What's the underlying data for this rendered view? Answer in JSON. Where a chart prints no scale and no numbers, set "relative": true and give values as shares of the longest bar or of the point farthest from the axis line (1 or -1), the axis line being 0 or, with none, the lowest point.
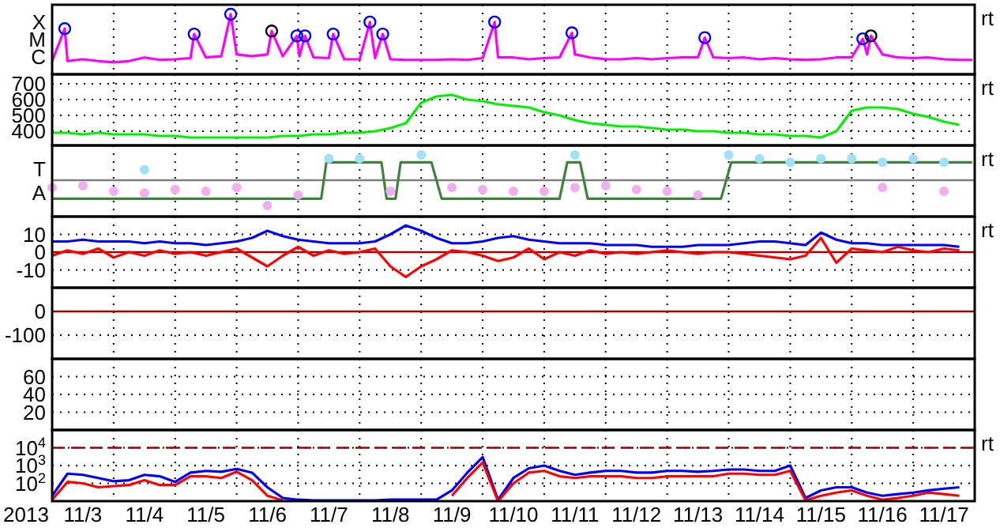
{
  "chart_data": [
    {
      "type": "line",
      "relative": true,
      "tick_labels": false,
      "grid": "x",
      "annotations": [
        "X",
        "M",
        "C",
        "rt"
      ],
      "xlim": [
        "2013-11-03T00:00",
        "2013-11-18T00:00"
      ],
      "xticks": [
        {
          "value": "2013-11-04T00:00",
          "label": null
        },
        {
          "value": "2013-11-05T00:00",
          "label": null
        },
        {
          "value": "2013-11-06T00:00",
          "label": null
        },
        {
          "value": "2013-11-07T00:00",
          "label": null
        },
        {
          "value": "2013-11-08T00:00",
          "label": null
        },
        {
          "value": "2013-11-09T00:00",
          "label": null
        },
        {
          "value": "2013-11-10T00:00",
          "label": null
        },
        {
          "value": "2013-11-11T00:00",
          "label": null
        },
        {
          "value": "2013-11-12T00:00",
          "label": null
        },
        {
          "value": "2013-11-13T00:00",
          "label": null
        },
        {
          "value": "2013-11-14T00:00",
          "label": null
        },
        {
          "value": "2013-11-15T00:00",
          "label": null
        },
        {
          "value": "2013-11-16T00:00",
          "label": null
        },
        {
          "value": "2013-11-17T00:00",
          "label": null
        }
      ],
      "series": [
        {
          "type": "line",
          "color": "#ff00ff",
          "x": [
            "2013-11-03T00:00",
            "2013-11-03T04:55",
            "2013-11-03T06:00",
            "2013-11-03T12:00",
            "2013-11-03T18:00",
            "2013-11-04T00:00",
            "2013-11-04T06:00",
            "2013-11-04T12:00",
            "2013-11-04T18:00",
            "2013-11-05T00:00",
            "2013-11-05T06:00",
            "2013-11-05T07:25",
            "2013-11-05T12:00",
            "2013-11-05T18:00",
            "2013-11-05T21:40",
            "2013-11-06T00:00",
            "2013-11-06T06:00",
            "2013-11-06T12:00",
            "2013-11-06T13:40",
            "2013-11-06T18:00",
            "2013-11-06T23:30",
            "2013-11-07T00:30",
            "2013-11-07T02:40",
            "2013-11-07T06:00",
            "2013-11-07T12:00",
            "2013-11-07T13:40",
            "2013-11-07T18:00",
            "2013-11-08T00:00",
            "2013-11-08T04:00",
            "2013-11-08T06:00",
            "2013-11-08T09:00",
            "2013-11-08T12:00",
            "2013-11-08T18:00",
            "2013-11-09T00:00",
            "2013-11-09T06:00",
            "2013-11-09T12:00",
            "2013-11-09T18:00",
            "2013-11-10T00:00",
            "2013-11-10T04:40",
            "2013-11-10T06:00",
            "2013-11-10T12:00",
            "2013-11-10T18:00",
            "2013-11-11T00:00",
            "2013-11-11T06:00",
            "2013-11-11T10:50",
            "2013-11-11T12:00",
            "2013-11-11T18:00",
            "2013-11-12T00:00",
            "2013-11-12T06:00",
            "2013-11-12T12:00",
            "2013-11-12T18:00",
            "2013-11-13T00:00",
            "2013-11-13T06:00",
            "2013-11-13T12:00",
            "2013-11-13T14:40",
            "2013-11-13T18:00",
            "2013-11-14T00:00",
            "2013-11-14T06:00",
            "2013-11-14T12:00",
            "2013-11-14T18:00",
            "2013-11-15T00:00",
            "2013-11-15T06:00",
            "2013-11-15T12:00",
            "2013-11-15T18:00",
            "2013-11-16T00:00",
            "2013-11-16T04:20",
            "2013-11-16T06:00",
            "2013-11-16T07:30",
            "2013-11-16T12:00",
            "2013-11-16T18:00",
            "2013-11-17T00:00",
            "2013-11-17T06:00",
            "2013-11-17T12:00",
            "2013-11-17T18:00",
            "2013-11-17T23:00"
          ],
          "values": [
            0.22,
            0.76,
            0.22,
            0.25,
            0.22,
            0.2,
            0.22,
            0.28,
            0.24,
            0.25,
            0.27,
            0.67,
            0.28,
            0.3,
            1,
            0.33,
            0.3,
            0.33,
            0.72,
            0.3,
            0.64,
            0.3,
            0.64,
            0.28,
            0.27,
            0.67,
            0.25,
            0.25,
            0.87,
            0.27,
            0.67,
            0.25,
            0.24,
            0.24,
            0.24,
            0.25,
            0.24,
            0.27,
            0.87,
            0.28,
            0.28,
            0.25,
            0.27,
            0.28,
            0.69,
            0.33,
            0.28,
            0.25,
            0.25,
            0.27,
            0.25,
            0.27,
            0.28,
            0.28,
            0.61,
            0.28,
            0.27,
            0.28,
            0.25,
            0.27,
            0.25,
            0.24,
            0.25,
            0.28,
            0.28,
            0.59,
            0.33,
            0.64,
            0.33,
            0.28,
            0.27,
            0.28,
            0.25,
            0.24,
            0.24
          ]
        },
        {
          "type": "scatter",
          "marker": "circle",
          "colors": [
            "#0000ff",
            "#0000ff",
            "#0000ff",
            "#000000",
            "#0000ff",
            "#0000ff",
            "#0000ff",
            "#0000ff",
            "#0000ff",
            "#0000ff",
            "#0000ff",
            "#0000ff",
            "#0000ff",
            "#000000"
          ],
          "x": [
            "2013-11-03T04:55",
            "2013-11-05T07:25",
            "2013-11-05T21:40",
            "2013-11-06T13:40",
            "2013-11-06T23:30",
            "2013-11-07T02:40",
            "2013-11-07T13:40",
            "2013-11-08T04:00",
            "2013-11-08T09:00",
            "2013-11-10T04:40",
            "2013-11-11T10:50",
            "2013-11-13T14:40",
            "2013-11-16T04:20",
            "2013-11-16T07:30"
          ],
          "values": [
            0.76,
            0.67,
            1,
            0.72,
            0.64,
            0.64,
            0.67,
            0.87,
            0.67,
            0.87,
            0.69,
            0.61,
            0.59,
            0.64
          ]
        }
      ]
    },
    {
      "type": "line",
      "ylim": [
        310,
        760
      ],
      "yticks": [
        400,
        500,
        600,
        700
      ],
      "tick_labels": "y",
      "grid": true,
      "annotations": [
        "rt"
      ],
      "xlim": [
        "2013-11-03T00:00",
        "2013-11-18T00:00"
      ],
      "xticks": [
        {
          "value": "2013-11-04T00:00",
          "label": null
        },
        {
          "value": "2013-11-05T00:00",
          "label": null
        },
        {
          "value": "2013-11-06T00:00",
          "label": null
        },
        {
          "value": "2013-11-07T00:00",
          "label": null
        },
        {
          "value": "2013-11-08T00:00",
          "label": null
        },
        {
          "value": "2013-11-09T00:00",
          "label": null
        },
        {
          "value": "2013-11-10T00:00",
          "label": null
        },
        {
          "value": "2013-11-11T00:00",
          "label": null
        },
        {
          "value": "2013-11-12T00:00",
          "label": null
        },
        {
          "value": "2013-11-13T00:00",
          "label": null
        },
        {
          "value": "2013-11-14T00:00",
          "label": null
        },
        {
          "value": "2013-11-15T00:00",
          "label": null
        },
        {
          "value": "2013-11-16T00:00",
          "label": null
        },
        {
          "value": "2013-11-17T00:00",
          "label": null
        }
      ],
      "x": [
        "2013-11-03T00:00",
        "2013-11-03T06:00",
        "2013-11-03T12:00",
        "2013-11-03T18:00",
        "2013-11-04T00:00",
        "2013-11-04T06:00",
        "2013-11-04T12:00",
        "2013-11-04T18:00",
        "2013-11-05T00:00",
        "2013-11-05T06:00",
        "2013-11-05T12:00",
        "2013-11-05T18:00",
        "2013-11-06T00:00",
        "2013-11-06T06:00",
        "2013-11-06T12:00",
        "2013-11-06T18:00",
        "2013-11-07T00:00",
        "2013-11-07T06:00",
        "2013-11-07T12:00",
        "2013-11-07T18:00",
        "2013-11-08T00:00",
        "2013-11-08T06:00",
        "2013-11-08T12:00",
        "2013-11-08T18:00",
        "2013-11-09T00:00",
        "2013-11-09T06:00",
        "2013-11-09T12:00",
        "2013-11-09T18:00",
        "2013-11-10T00:00",
        "2013-11-10T06:00",
        "2013-11-10T12:00",
        "2013-11-10T18:00",
        "2013-11-11T00:00",
        "2013-11-11T06:00",
        "2013-11-11T12:00",
        "2013-11-11T18:00",
        "2013-11-12T00:00",
        "2013-11-12T06:00",
        "2013-11-12T12:00",
        "2013-11-12T18:00",
        "2013-11-13T00:00",
        "2013-11-13T06:00",
        "2013-11-13T12:00",
        "2013-11-13T18:00",
        "2013-11-14T00:00",
        "2013-11-14T06:00",
        "2013-11-14T12:00",
        "2013-11-14T18:00",
        "2013-11-15T00:00",
        "2013-11-15T06:00",
        "2013-11-15T12:00",
        "2013-11-15T18:00",
        "2013-11-16T00:00",
        "2013-11-16T06:00",
        "2013-11-16T12:00",
        "2013-11-16T18:00",
        "2013-11-17T00:00",
        "2013-11-17T06:00",
        "2013-11-17T12:00",
        "2013-11-17T18:00"
      ],
      "series": [
        {
          "color": "#00ee00",
          "values": [
            390,
            390,
            380,
            390,
            380,
            380,
            380,
            370,
            370,
            360,
            360,
            360,
            360,
            360,
            360,
            370,
            370,
            380,
            380,
            390,
            390,
            400,
            420,
            450,
            580,
            620,
            630,
            600,
            590,
            570,
            560,
            550,
            520,
            500,
            470,
            450,
            440,
            430,
            430,
            420,
            410,
            410,
            400,
            400,
            390,
            390,
            380,
            380,
            370,
            370,
            360,
            400,
            530,
            550,
            550,
            540,
            510,
            490,
            460,
            440
          ]
        }
      ]
    },
    {
      "type": "line",
      "relative": true,
      "tick_labels": false,
      "grid": "x",
      "annotations": [
        "T",
        "A",
        "rt"
      ],
      "ref_lines": [
        {
          "axis": "y",
          "value": 0.59,
          "color": "#808080"
        }
      ],
      "xlim": [
        "2013-11-03T00:00",
        "2013-11-18T00:00"
      ],
      "xticks": [
        {
          "value": "2013-11-04T00:00",
          "label": null
        },
        {
          "value": "2013-11-05T00:00",
          "label": null
        },
        {
          "value": "2013-11-06T00:00",
          "label": null
        },
        {
          "value": "2013-11-07T00:00",
          "label": null
        },
        {
          "value": "2013-11-08T00:00",
          "label": null
        },
        {
          "value": "2013-11-09T00:00",
          "label": null
        },
        {
          "value": "2013-11-10T00:00",
          "label": null
        },
        {
          "value": "2013-11-11T00:00",
          "label": null
        },
        {
          "value": "2013-11-12T00:00",
          "label": null
        },
        {
          "value": "2013-11-13T00:00",
          "label": null
        },
        {
          "value": "2013-11-14T00:00",
          "label": null
        },
        {
          "value": "2013-11-15T00:00",
          "label": null
        },
        {
          "value": "2013-11-16T00:00",
          "label": null
        },
        {
          "value": "2013-11-17T00:00",
          "label": null
        }
      ],
      "x": [
        "2013-11-03T00:00",
        "2013-11-03T12:00",
        "2013-11-04T00:00",
        "2013-11-04T12:00",
        "2013-11-05T00:00",
        "2013-11-05T12:00",
        "2013-11-06T00:00",
        "2013-11-06T12:00",
        "2013-11-07T00:00",
        "2013-11-07T12:00",
        "2013-11-08T00:00",
        "2013-11-08T12:00",
        "2013-11-09T00:00",
        "2013-11-09T12:00",
        "2013-11-10T00:00",
        "2013-11-10T12:00",
        "2013-11-11T00:00",
        "2013-11-11T12:00",
        "2013-11-12T00:00",
        "2013-11-12T12:00",
        "2013-11-13T00:00",
        "2013-11-13T12:00",
        "2013-11-14T00:00",
        "2013-11-14T12:00",
        "2013-11-15T00:00",
        "2013-11-15T12:00",
        "2013-11-16T00:00",
        "2013-11-16T12:00",
        "2013-11-17T00:00",
        "2013-11-17T12:00"
      ],
      "series": [
        {
          "type": "scatter",
          "marker": "circle",
          "color": "#f0b0f0",
          "values": [
            0.47,
            0.5,
            0.41,
            0.38,
            0.44,
            0.41,
            0.47,
            0.18,
            0.35,
            null,
            null,
            0.41,
            null,
            0.47,
            0.44,
            0.41,
            0.41,
            0.47,
            0.5,
            0.44,
            0.41,
            0.35,
            null,
            null,
            null,
            null,
            null,
            0.47,
            null,
            0.41
          ]
        },
        {
          "type": "scatter",
          "marker": "circle",
          "color": "#a0e0f8",
          "values": [
            null,
            null,
            null,
            0.76,
            null,
            null,
            null,
            null,
            null,
            0.94,
            0.94,
            null,
            1,
            null,
            null,
            null,
            null,
            1,
            null,
            null,
            null,
            null,
            1,
            0.94,
            0.88,
            0.94,
            0.94,
            0.88,
            0.94,
            0.88
          ]
        },
        {
          "type": "line",
          "color": "#408040",
          "x": [
            "2013-11-03T00:00",
            "2013-11-07T09:00",
            "2013-11-07T11:00",
            "2013-11-08T08:30",
            "2013-11-08T10:30",
            "2013-11-08T14:00",
            "2013-11-08T16:00",
            "2013-11-09T04:00",
            "2013-11-09T08:00",
            "2013-11-11T06:00",
            "2013-11-11T09:00",
            "2013-11-11T14:00",
            "2013-11-11T17:00",
            "2013-11-13T21:00",
            "2013-11-14T01:00",
            "2013-11-17T23:00"
          ],
          "values": [
            0.29,
            0.29,
            0.88,
            0.88,
            0.29,
            0.29,
            0.88,
            0.88,
            0.29,
            0.29,
            0.88,
            0.88,
            0.29,
            0.29,
            0.88,
            0.88
          ]
        }
      ]
    },
    {
      "type": "line",
      "ylim": [
        -20,
        20
      ],
      "yticks": [
        10,
        0,
        -10
      ],
      "tick_labels": "y",
      "grid": true,
      "annotations": [
        "rt"
      ],
      "ref_lines": [
        {
          "axis": "y",
          "value": 0,
          "color": "#a00000"
        }
      ],
      "xlim": [
        "2013-11-03T00:00",
        "2013-11-18T00:00"
      ],
      "xticks": [
        {
          "value": "2013-11-04T00:00",
          "label": null
        },
        {
          "value": "2013-11-05T00:00",
          "label": null
        },
        {
          "value": "2013-11-06T00:00",
          "label": null
        },
        {
          "value": "2013-11-07T00:00",
          "label": null
        },
        {
          "value": "2013-11-08T00:00",
          "label": null
        },
        {
          "value": "2013-11-09T00:00",
          "label": null
        },
        {
          "value": "2013-11-10T00:00",
          "label": null
        },
        {
          "value": "2013-11-11T00:00",
          "label": null
        },
        {
          "value": "2013-11-12T00:00",
          "label": null
        },
        {
          "value": "2013-11-13T00:00",
          "label": null
        },
        {
          "value": "2013-11-14T00:00",
          "label": null
        },
        {
          "value": "2013-11-15T00:00",
          "label": null
        },
        {
          "value": "2013-11-16T00:00",
          "label": null
        },
        {
          "value": "2013-11-17T00:00",
          "label": null
        }
      ],
      "x": [
        "2013-11-03T00:00",
        "2013-11-03T06:00",
        "2013-11-03T12:00",
        "2013-11-03T18:00",
        "2013-11-04T00:00",
        "2013-11-04T06:00",
        "2013-11-04T12:00",
        "2013-11-04T18:00",
        "2013-11-05T00:00",
        "2013-11-05T06:00",
        "2013-11-05T12:00",
        "2013-11-05T18:00",
        "2013-11-06T00:00",
        "2013-11-06T06:00",
        "2013-11-06T12:00",
        "2013-11-06T18:00",
        "2013-11-07T00:00",
        "2013-11-07T06:00",
        "2013-11-07T12:00",
        "2013-11-07T18:00",
        "2013-11-08T00:00",
        "2013-11-08T06:00",
        "2013-11-08T12:00",
        "2013-11-08T18:00",
        "2013-11-09T00:00",
        "2013-11-09T06:00",
        "2013-11-09T12:00",
        "2013-11-09T18:00",
        "2013-11-10T00:00",
        "2013-11-10T06:00",
        "2013-11-10T12:00",
        "2013-11-10T18:00",
        "2013-11-11T00:00",
        "2013-11-11T06:00",
        "2013-11-11T12:00",
        "2013-11-11T18:00",
        "2013-11-12T00:00",
        "2013-11-12T06:00",
        "2013-11-12T12:00",
        "2013-11-12T18:00",
        "2013-11-13T00:00",
        "2013-11-13T06:00",
        "2013-11-13T12:00",
        "2013-11-13T18:00",
        "2013-11-14T00:00",
        "2013-11-14T06:00",
        "2013-11-14T12:00",
        "2013-11-14T18:00",
        "2013-11-15T00:00",
        "2013-11-15T06:00",
        "2013-11-15T12:00",
        "2013-11-15T18:00",
        "2013-11-16T00:00",
        "2013-11-16T06:00",
        "2013-11-16T12:00",
        "2013-11-16T18:00",
        "2013-11-17T00:00",
        "2013-11-17T06:00",
        "2013-11-17T12:00",
        "2013-11-17T18:00"
      ],
      "series": [
        {
          "color": "#0000ff",
          "values": [
            6,
            6,
            7,
            6,
            6,
            6,
            5,
            6,
            5,
            5,
            4,
            5,
            6,
            8,
            12,
            9,
            7,
            6,
            5,
            5,
            5,
            6,
            10,
            15,
            12,
            8,
            5,
            5,
            6,
            8,
            9,
            7,
            6,
            5,
            5,
            5,
            4,
            4,
            4,
            3,
            3,
            3,
            4,
            4,
            4,
            5,
            6,
            6,
            5,
            4,
            11,
            7,
            5,
            5,
            4,
            4,
            4,
            4,
            4,
            3
          ]
        },
        {
          "color": "#ff0000",
          "values": [
            -2,
            1,
            -1,
            2,
            -3,
            0,
            -2,
            1,
            -1,
            0,
            -2,
            0,
            2,
            -3,
            -8,
            -2,
            3,
            -2,
            1,
            -1,
            0,
            2,
            -8,
            -14,
            -8,
            -4,
            1,
            0,
            -2,
            -5,
            -3,
            2,
            -4,
            0,
            -2,
            1,
            -1,
            0,
            -1,
            0,
            1,
            0,
            -1,
            0,
            0,
            -1,
            -2,
            -3,
            -4,
            -2,
            8,
            -6,
            2,
            1,
            0,
            3,
            1,
            0,
            2,
            1
          ]
        }
      ]
    },
    {
      "type": "line",
      "ylim": [
        -200,
        100
      ],
      "yticks": [
        0,
        -100
      ],
      "tick_labels": "y",
      "grid": true,
      "ref_lines": [
        {
          "axis": "y",
          "value": 0,
          "color": "#a00000"
        }
      ],
      "xlim": [
        "2013-11-03T00:00",
        "2013-11-18T00:00"
      ],
      "xticks": [
        {
          "value": "2013-11-04T00:00",
          "label": null
        },
        {
          "value": "2013-11-05T00:00",
          "label": null
        },
        {
          "value": "2013-11-06T00:00",
          "label": null
        },
        {
          "value": "2013-11-07T00:00",
          "label": null
        },
        {
          "value": "2013-11-08T00:00",
          "label": null
        },
        {
          "value": "2013-11-09T00:00",
          "label": null
        },
        {
          "value": "2013-11-10T00:00",
          "label": null
        },
        {
          "value": "2013-11-11T00:00",
          "label": null
        },
        {
          "value": "2013-11-12T00:00",
          "label": null
        },
        {
          "value": "2013-11-13T00:00",
          "label": null
        },
        {
          "value": "2013-11-14T00:00",
          "label": null
        },
        {
          "value": "2013-11-15T00:00",
          "label": null
        },
        {
          "value": "2013-11-16T00:00",
          "label": null
        },
        {
          "value": "2013-11-17T00:00",
          "label": null
        }
      ]
    },
    {
      "type": "line",
      "ylim": [
        0,
        80
      ],
      "yticks": [
        60,
        40,
        20
      ],
      "tick_labels": "y",
      "grid": true,
      "xlim": [
        "2013-11-03T00:00",
        "2013-11-18T00:00"
      ],
      "xticks": [
        {
          "value": "2013-11-04T00:00",
          "label": null
        },
        {
          "value": "2013-11-05T00:00",
          "label": null
        },
        {
          "value": "2013-11-06T00:00",
          "label": null
        },
        {
          "value": "2013-11-07T00:00",
          "label": null
        },
        {
          "value": "2013-11-08T00:00",
          "label": null
        },
        {
          "value": "2013-11-09T00:00",
          "label": null
        },
        {
          "value": "2013-11-10T00:00",
          "label": null
        },
        {
          "value": "2013-11-11T00:00",
          "label": null
        },
        {
          "value": "2013-11-12T00:00",
          "label": null
        },
        {
          "value": "2013-11-13T00:00",
          "label": null
        },
        {
          "value": "2013-11-14T00:00",
          "label": null
        },
        {
          "value": "2013-11-15T00:00",
          "label": null
        },
        {
          "value": "2013-11-16T00:00",
          "label": null
        },
        {
          "value": "2013-11-17T00:00",
          "label": null
        }
      ]
    },
    {
      "type": "line",
      "log": "y",
      "ylim": [
        10,
        100000
      ],
      "yticks": [
        {
          "value": 100,
          "label": "10$^{2}$"
        },
        {
          "value": 1000,
          "label": "10$^{3}$"
        },
        {
          "value": 10000,
          "label": "10$^{4}$"
        }
      ],
      "grid": true,
      "annotations": [
        "rt"
      ],
      "xlabel": "2013",
      "ref_lines": [
        {
          "axis": "y",
          "value": 10000,
          "color": "#a00000",
          "line_style": "dashed"
        }
      ],
      "xlim": [
        "2013-11-03T00:00",
        "2013-11-18T00:00"
      ],
      "xticks": [
        {
          "value": "2013-11-03T12:00",
          "label": "11/3"
        },
        {
          "value": "2013-11-04T00:00",
          "label": null
        },
        {
          "value": "2013-11-04T12:00",
          "label": "11/4"
        },
        {
          "value": "2013-11-05T00:00",
          "label": null
        },
        {
          "value": "2013-11-05T12:00",
          "label": "11/5"
        },
        {
          "value": "2013-11-06T00:00",
          "label": null
        },
        {
          "value": "2013-11-06T12:00",
          "label": "11/6"
        },
        {
          "value": "2013-11-07T00:00",
          "label": null
        },
        {
          "value": "2013-11-07T12:00",
          "label": "11/7"
        },
        {
          "value": "2013-11-08T00:00",
          "label": null
        },
        {
          "value": "2013-11-08T12:00",
          "label": "11/8"
        },
        {
          "value": "2013-11-09T00:00",
          "label": null
        },
        {
          "value": "2013-11-09T12:00",
          "label": "11/9"
        },
        {
          "value": "2013-11-10T00:00",
          "label": null
        },
        {
          "value": "2013-11-10T12:00",
          "label": "11/10"
        },
        {
          "value": "2013-11-11T00:00",
          "label": null
        },
        {
          "value": "2013-11-11T12:00",
          "label": "11/11"
        },
        {
          "value": "2013-11-12T00:00",
          "label": null
        },
        {
          "value": "2013-11-12T12:00",
          "label": "11/12"
        },
        {
          "value": "2013-11-13T00:00",
          "label": null
        },
        {
          "value": "2013-11-13T12:00",
          "label": "11/13"
        },
        {
          "value": "2013-11-14T00:00",
          "label": null
        },
        {
          "value": "2013-11-14T12:00",
          "label": "11/14"
        },
        {
          "value": "2013-11-15T00:00",
          "label": null
        },
        {
          "value": "2013-11-15T12:00",
          "label": "11/15"
        },
        {
          "value": "2013-11-16T00:00",
          "label": null
        },
        {
          "value": "2013-11-16T12:00",
          "label": "11/16"
        },
        {
          "value": "2013-11-17T00:00",
          "label": null
        },
        {
          "value": "2013-11-17T12:00",
          "label": "11/17"
        }
      ],
      "x": [
        "2013-11-03T00:00",
        "2013-11-03T06:00",
        "2013-11-03T12:00",
        "2013-11-03T18:00",
        "2013-11-04T00:00",
        "2013-11-04T06:00",
        "2013-11-04T12:00",
        "2013-11-04T18:00",
        "2013-11-05T00:00",
        "2013-11-05T06:00",
        "2013-11-05T12:00",
        "2013-11-05T18:00",
        "2013-11-06T00:00",
        "2013-11-06T06:00",
        "2013-11-06T12:00",
        "2013-11-06T18:00",
        "2013-11-07T00:00",
        "2013-11-07T06:00",
        "2013-11-07T12:00",
        "2013-11-07T18:00",
        "2013-11-08T00:00",
        "2013-11-08T06:00",
        "2013-11-08T12:00",
        "2013-11-08T18:00",
        "2013-11-09T00:00",
        "2013-11-09T06:00",
        "2013-11-09T12:00",
        "2013-11-09T18:00",
        "2013-11-10T00:00",
        "2013-11-10T06:00",
        "2013-11-10T12:00",
        "2013-11-10T18:00",
        "2013-11-11T00:00",
        "2013-11-11T06:00",
        "2013-11-11T12:00",
        "2013-11-11T18:00",
        "2013-11-12T00:00",
        "2013-11-12T06:00",
        "2013-11-12T12:00",
        "2013-11-12T18:00",
        "2013-11-13T00:00",
        "2013-11-13T06:00",
        "2013-11-13T12:00",
        "2013-11-13T18:00",
        "2013-11-14T00:00",
        "2013-11-14T06:00",
        "2013-11-14T12:00",
        "2013-11-14T18:00",
        "2013-11-15T00:00",
        "2013-11-15T06:00",
        "2013-11-15T12:00",
        "2013-11-15T18:00",
        "2013-11-16T00:00",
        "2013-11-16T06:00",
        "2013-11-16T12:00",
        "2013-11-16T18:00",
        "2013-11-17T00:00",
        "2013-11-17T06:00",
        "2013-11-17T12:00",
        "2013-11-17T18:00"
      ],
      "series": [
        {
          "color": "#0000ff",
          "values": [
            20,
            350,
            300,
            200,
            130,
            150,
            300,
            250,
            120,
            400,
            500,
            450,
            650,
            400,
            60,
            15,
            12,
            11,
            11,
            11,
            11,
            11,
            12,
            12,
            12,
            12,
            40,
            400,
            3000,
            12,
            200,
            700,
            1000,
            500,
            300,
            400,
            500,
            500,
            400,
            400,
            500,
            500,
            450,
            500,
            600,
            600,
            500,
            500,
            1000,
            15,
            40,
            60,
            60,
            30,
            20,
            25,
            30,
            40,
            50,
            60
          ]
        },
        {
          "color": "#ff0000",
          "values": [
            12,
            120,
            100,
            60,
            70,
            80,
            150,
            80,
            80,
            250,
            250,
            200,
            450,
            150,
            20,
            11,
            null,
            null,
            null,
            null,
            null,
            null,
            null,
            null,
            null,
            null,
            20,
            200,
            1500,
            10,
            100,
            400,
            500,
            250,
            200,
            250,
            250,
            250,
            200,
            200,
            250,
            250,
            250,
            250,
            350,
            350,
            300,
            300,
            500,
            11,
            20,
            30,
            40,
            20,
            12,
            15,
            20,
            30,
            25,
            20
          ]
        }
      ]
    }
  ]
}
